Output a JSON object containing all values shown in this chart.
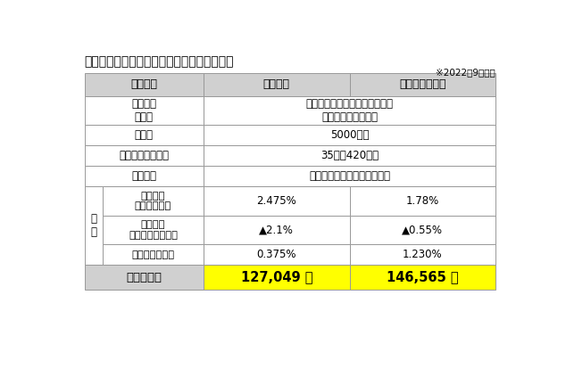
{
  "title": "【住宅ローン　金利比較シミュレーション】",
  "note": "※2022年9月時点",
  "header_row": [
    "金利種類",
    "変動金利",
    "全期間固定金利"
  ],
  "bank_row": {
    "label": "金融機関\n商品名",
    "value": "みずほ銀行　ネット住宅ローン\nローン取扱手数料型"
  },
  "simple_rows": [
    {
      "label": "借入額",
      "value": "5000万円"
    },
    {
      "label": "返済年数（回数）",
      "value": "35年（420回）"
    },
    {
      "label": "返済方法",
      "value": "元利均等返済・月々返済のみ"
    }
  ],
  "kinri_label": "金\n利",
  "kinri_rows": [
    {
      "label": "基準金利\n（店頭金利）",
      "col1": "2.475%",
      "col2": "1.78%",
      "bold": false
    },
    {
      "label": "最優遇幅\n（金利の値引き）",
      "col1": "▲2.1%",
      "col2": "▲0.55%",
      "bold": false
    },
    {
      "label": "最優遇後の金利",
      "col1": "0.375%",
      "col2": "1.230%",
      "bold": true
    }
  ],
  "bottom_row": {
    "label": "毎月返済額",
    "col1": "127,049 円",
    "col2": "146,565 円"
  },
  "bg_color": "#ffffff",
  "header_bg": "#d0d0d0",
  "cell_bg": "#ffffff",
  "bottom_bg_label": "#d0d0d0",
  "bottom_bg_data": "#ffff00",
  "border_color": "#999999",
  "text_color": "#000000"
}
